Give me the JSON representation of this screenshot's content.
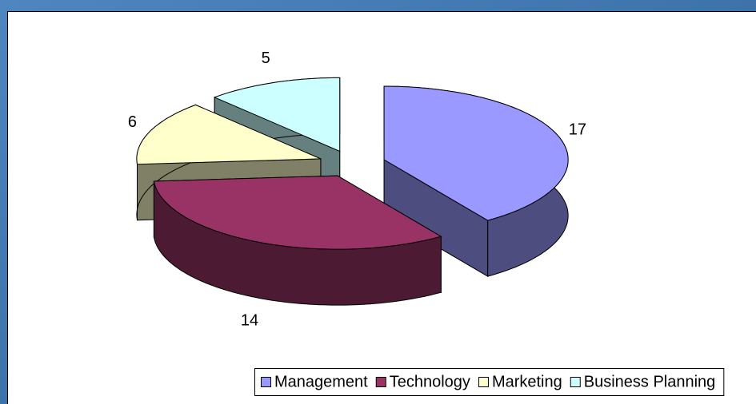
{
  "chart_data": {
    "type": "pie3d",
    "categories": [
      "Management",
      "Technology",
      "Marketing",
      "Business Planning"
    ],
    "values": [
      17,
      14,
      6,
      5
    ],
    "colors": [
      "#9999ff",
      "#993366",
      "#ffffcc",
      "#ccffff"
    ],
    "side_colors": [
      "#4d4d80",
      "#4d1a33",
      "#808066",
      "#668080"
    ],
    "legend": "bottom",
    "exploded": true
  }
}
